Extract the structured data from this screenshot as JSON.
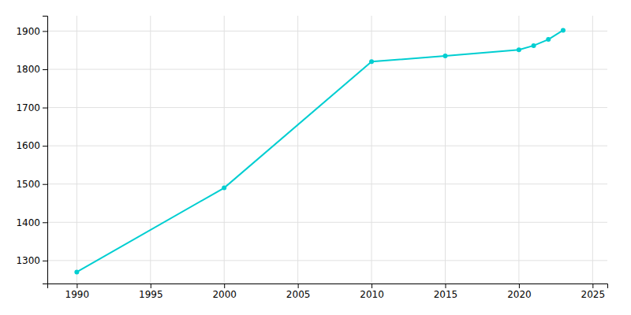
{
  "chart_data": {
    "type": "line",
    "x": [
      1990,
      2000,
      2010,
      2015,
      2020,
      2021,
      2022,
      2023
    ],
    "values": [
      1270,
      1490,
      1820,
      1835,
      1851,
      1862,
      1878,
      1902
    ],
    "color": "#00CED1",
    "marker": "circle",
    "xlim": [
      1988,
      2026
    ],
    "ylim": [
      1240,
      1940
    ],
    "xticks": [
      1990,
      1995,
      2000,
      2005,
      2010,
      2015,
      2020,
      2025
    ],
    "yticks": [
      1300,
      1400,
      1500,
      1600,
      1700,
      1800,
      1900
    ],
    "grid": true
  }
}
